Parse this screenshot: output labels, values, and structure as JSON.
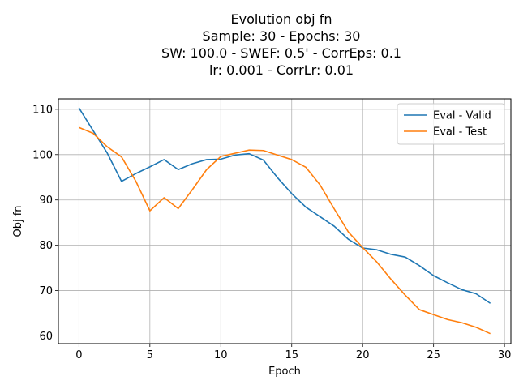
{
  "chart_data": {
    "type": "line",
    "title_lines": [
      "Evolution obj fn",
      "Sample: 30 - Epochs: 30",
      "SW: 100.0 - SWEF: 0.5' - CorrEps: 0.1",
      "lr: 0.001 - CorrLr: 0.01"
    ],
    "xlabel": "Epoch",
    "ylabel": "Obj fn",
    "xlim": [
      -1.45,
      30.45
    ],
    "ylim": [
      58.3,
      112.3
    ],
    "xticks": [
      0,
      5,
      10,
      15,
      20,
      25,
      30
    ],
    "yticks": [
      60,
      70,
      80,
      90,
      100,
      110
    ],
    "grid": true,
    "legend_position": "top-right",
    "x": [
      0,
      1,
      2,
      3,
      4,
      5,
      6,
      7,
      8,
      9,
      10,
      11,
      12,
      13,
      14,
      15,
      16,
      17,
      18,
      19,
      20,
      21,
      22,
      23,
      24,
      25,
      26,
      27,
      28,
      29
    ],
    "series": [
      {
        "name": "Eval - Valid",
        "color": "#1f77b4",
        "values": [
          110.3,
          105.3,
          100.3,
          94.1,
          95.8,
          97.3,
          98.9,
          96.7,
          98.0,
          98.9,
          99.0,
          99.9,
          100.2,
          98.8,
          94.9,
          91.4,
          88.4,
          86.3,
          84.2,
          81.3,
          79.4,
          79.0,
          78.0,
          77.4,
          75.5,
          73.3,
          71.7,
          70.2,
          69.3,
          67.2
        ]
      },
      {
        "name": "Eval - Test",
        "color": "#ff7f0e",
        "values": [
          106.0,
          104.7,
          101.7,
          99.5,
          94.2,
          87.6,
          90.5,
          88.1,
          92.3,
          96.7,
          99.6,
          100.3,
          101.0,
          100.9,
          99.9,
          98.9,
          97.2,
          93.3,
          88.0,
          82.9,
          79.5,
          76.3,
          72.5,
          69.0,
          65.8,
          64.7,
          63.6,
          62.9,
          61.9,
          60.5
        ]
      }
    ]
  }
}
